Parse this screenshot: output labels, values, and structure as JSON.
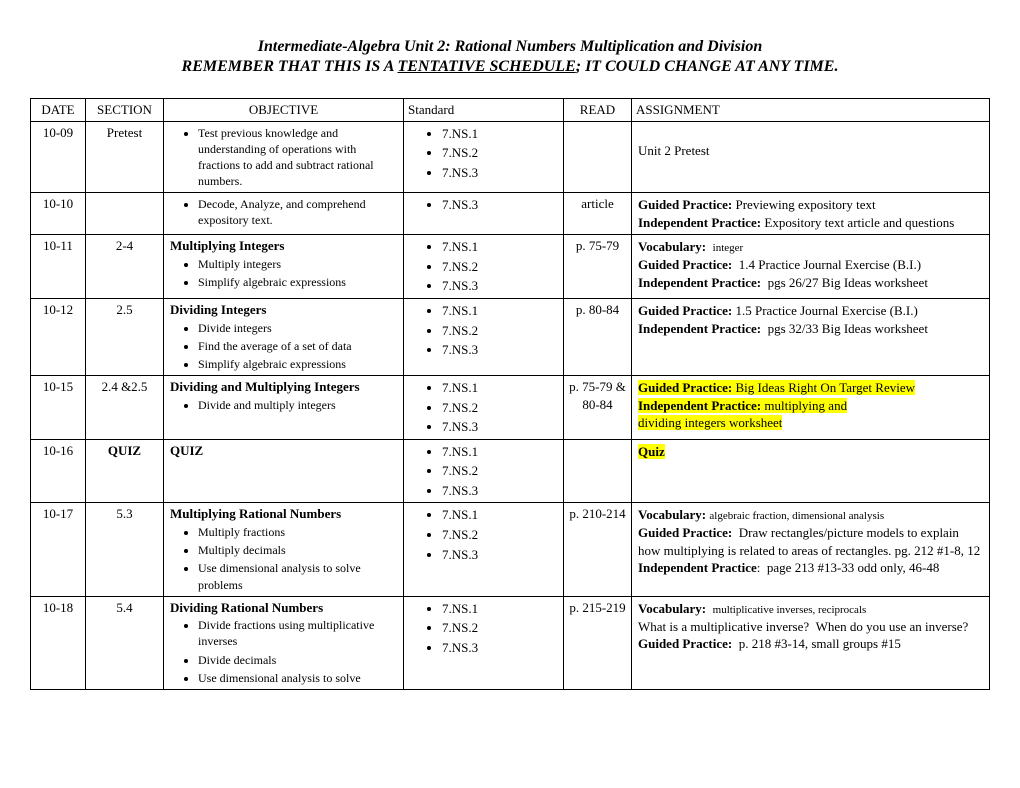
{
  "title": "Intermediate-Algebra Unit 2: Rational Numbers Multiplication and Division",
  "subtitle_pre": "REMEMBER THAT THIS IS A ",
  "subtitle_underline": "TENTATIVE SCHEDULE",
  "subtitle_post": "; IT COULD CHANGE AT ANY TIME.",
  "headers": {
    "date": "DATE",
    "section": "SECTION",
    "objective": "OBJECTIVE",
    "standard": "Standard",
    "read": "READ",
    "assignment": "ASSIGNMENT"
  },
  "standards": [
    "7.NS.1",
    "7.NS.2",
    "7.NS.3"
  ],
  "rows": [
    {
      "date": "10-09",
      "section": "Pretest",
      "obj_title": "",
      "bullets": [
        "Test previous knowledge and understanding of operations with fractions to add and subtract rational numbers."
      ],
      "read": "",
      "assignment_html": "<br>Unit 2 Pretest"
    },
    {
      "date": "10-10",
      "section": "",
      "obj_title": "",
      "bullets": [
        "Decode, Analyze, and comprehend expository text."
      ],
      "standards_only": [
        "7.NS.3"
      ],
      "read": "article",
      "assignment_html": "<span class=\"b\">Guided Practice:</span> Previewing expository text<br><span class=\"b\">Independent Practice:</span> Expository text article and questions"
    },
    {
      "date": "10-11",
      "section": "2-4",
      "obj_title": "Multiplying Integers",
      "bullets": [
        "Multiply integers",
        "Simplify algebraic expressions"
      ],
      "read": "p. 75-79",
      "assignment_html": "<span class=\"b\">Vocabulary:</span>&nbsp;&nbsp;<span class=\"small\">integer</span><br><span class=\"b\">Guided Practice:</span>&nbsp; 1.4 Practice Journal Exercise (B.I.)<br><span class=\"b\">Independent Practice:</span>&nbsp; pgs 26/27 Big Ideas worksheet"
    },
    {
      "date": "10-12",
      "section": "2.5",
      "obj_title": "Dividing Integers",
      "bullets": [
        "Divide integers",
        "Find the average of a set of data",
        "Simplify algebraic expressions"
      ],
      "read": "p. 80-84",
      "assignment_html": "<span class=\"b\">Guided Practice:</span> 1.5 Practice Journal Exercise (B.I.)<br><span class=\"b\">Independent Practice:</span>&nbsp; pgs 32/33 Big Ideas worksheet"
    },
    {
      "date": "10-15",
      "section": "2.4 &2.5",
      "obj_title": "Dividing and Multiplying Integers",
      "bullets": [
        "Divide and multiply integers"
      ],
      "read": "p. 75-79 & 80-84",
      "assignment_html": "<span class=\"hl\"><span class=\"b\">Guided Practice:</span> Big Ideas Right On Target Review</span><br><span class=\"hl\"><span class=\"b\">Independent Practice:</span> multiplying and </span><br><span class=\"hl\">dividing integers worksheet</span>"
    },
    {
      "date": "10-16",
      "section": "QUIZ",
      "section_bold": true,
      "obj_title": "QUIZ",
      "bullets": [],
      "read": "",
      "assignment_html": "<span class=\"hl\"><span class=\"b\">Quiz</span></span>"
    },
    {
      "date": "10-17",
      "section": "5.3",
      "obj_title": "Multiplying Rational Numbers",
      "bullets": [
        "Multiply fractions",
        "Multiply decimals",
        "Use dimensional analysis to solve problems"
      ],
      "read": "p. 210-214",
      "assignment_html": "<span class=\"b\">Vocabulary:</span> <span class=\"small\">algebraic fraction, dimensional analysis</span><br><span class=\"b\">Guided Practice:</span>&nbsp; Draw rectangles/picture models to explain how multiplying is related to areas of rectangles. pg. 212 #1-8, 12<br><span class=\"b\">Independent Practice</span>:&nbsp; page 213 #13-33 odd only, 46-48"
    },
    {
      "date": "10-18",
      "section": "5.4",
      "obj_title": "Dividing Rational Numbers",
      "bullets": [
        "Divide fractions using multiplicative inverses",
        "Divide decimals",
        "Use dimensional analysis to solve"
      ],
      "read": "p. 215-219",
      "assignment_html": "<span class=\"b\">Vocabulary:</span>&nbsp;&nbsp;<span class=\"small\">multiplicative inverses, reciprocals</span><br>What is a multiplicative inverse?&nbsp;&nbsp;When do you use an inverse?<br><span class=\"b\">Guided Practice:</span>&nbsp; p. 218 #3-14, small groups #15"
    }
  ]
}
